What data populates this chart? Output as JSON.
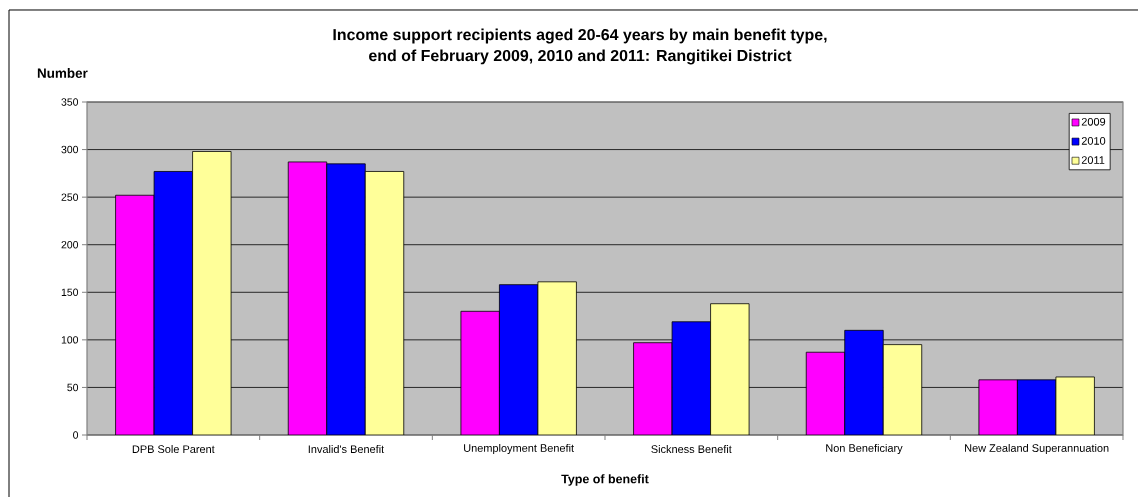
{
  "chart_data": {
    "type": "bar",
    "title": "Income support recipients aged 20-64 years by main benefit type, end of February 2009, 2010 and 2011: Rangitikei District",
    "xlabel": "Type of benefit",
    "ylabel": "Number",
    "categories": [
      "DPB Sole Parent",
      "Invalid's Benefit",
      "Unemployment Benefit",
      "Sickness Benefit",
      "Non Beneficiary",
      "New Zealand Superannuation"
    ],
    "series": [
      {
        "name": "2009",
        "color": "#ff00ff",
        "values": [
          252,
          287,
          130,
          97,
          87,
          58
        ]
      },
      {
        "name": "2010",
        "color": "#0000ff",
        "values": [
          277,
          285,
          158,
          119,
          110,
          58
        ]
      },
      {
        "name": "2011",
        "color": "#ffff99",
        "values": [
          298,
          277,
          161,
          138,
          95,
          61
        ]
      }
    ],
    "ylim": [
      0,
      350
    ],
    "yticks": [
      0,
      50,
      100,
      150,
      200,
      250,
      300,
      350
    ],
    "grid": "y",
    "legend": "top right"
  }
}
